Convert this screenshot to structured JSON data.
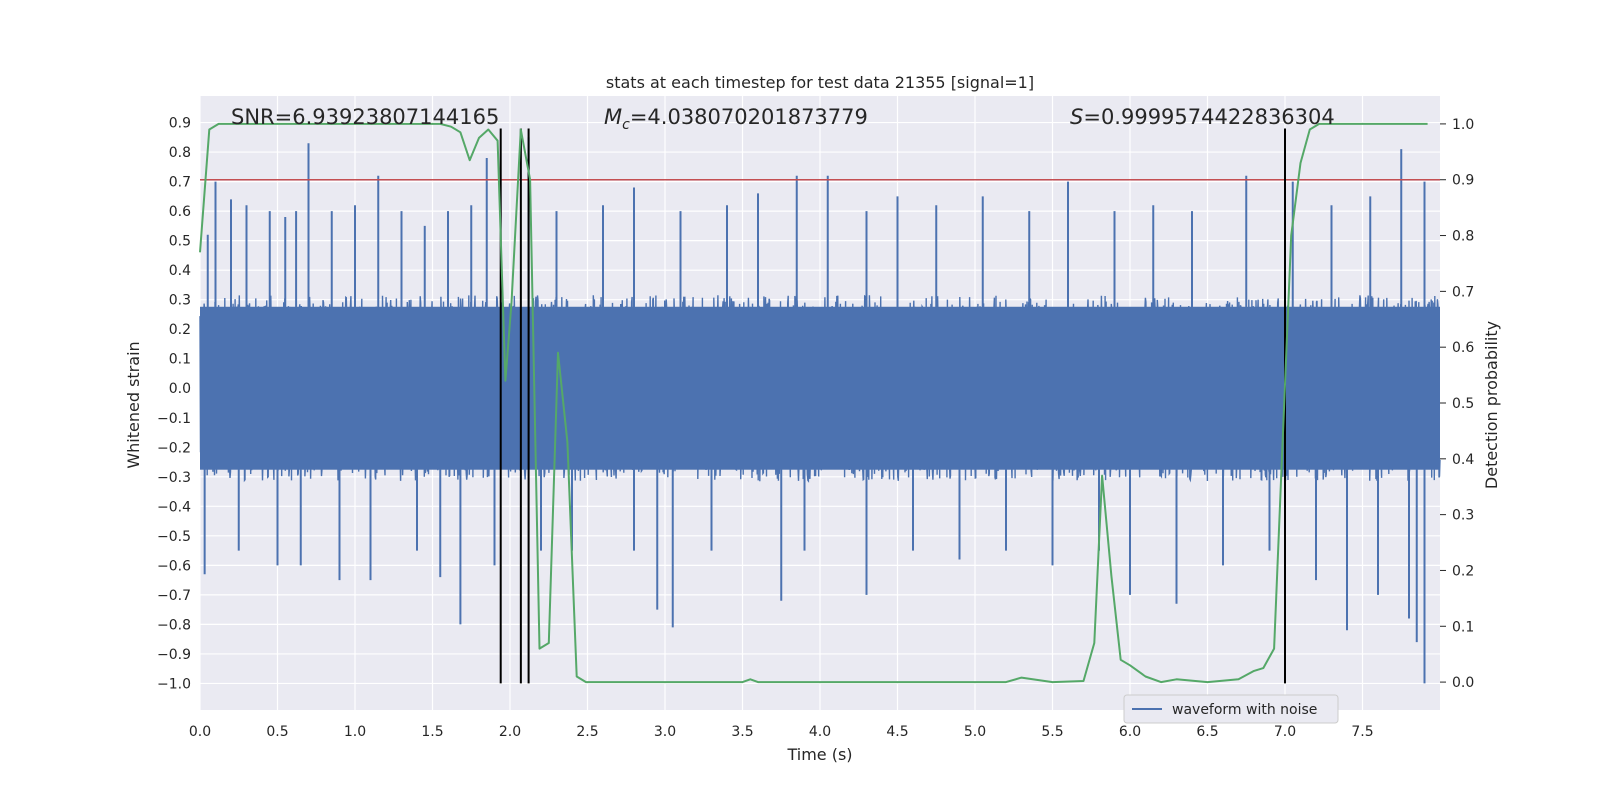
{
  "chart_data": {
    "type": "line",
    "title": "stats at each timestep for test data 21355 [signal=1]",
    "xlabel": "Time (s)",
    "ylabel": "Whitened strain",
    "y2label": "Detection probability",
    "xlim": [
      0.0,
      8.0
    ],
    "ylim": [
      -1.09,
      0.99
    ],
    "y2lim": [
      -0.05,
      1.05
    ],
    "xticks": [
      0.0,
      0.5,
      1.0,
      1.5,
      2.0,
      2.5,
      3.0,
      3.5,
      4.0,
      4.5,
      5.0,
      5.5,
      6.0,
      6.5,
      7.0,
      7.5
    ],
    "xtick_labels": [
      "0.0",
      "0.5",
      "1.0",
      "1.5",
      "2.0",
      "2.5",
      "3.0",
      "3.5",
      "4.0",
      "4.5",
      "5.0",
      "5.5",
      "6.0",
      "6.5",
      "7.0",
      "7.5"
    ],
    "yticks": [
      0.9,
      0.8,
      0.7,
      0.6,
      0.5,
      0.4,
      0.3,
      0.2,
      0.1,
      0.0,
      -0.1,
      -0.2,
      -0.3,
      -0.4,
      -0.5,
      -0.6,
      -0.7,
      -0.8,
      -0.9,
      -1.0
    ],
    "ytick_labels": [
      "0.9",
      "0.8",
      "0.7",
      "0.6",
      "0.5",
      "0.4",
      "0.3",
      "0.2",
      "0.1",
      "0.0",
      "−0.1",
      "−0.2",
      "−0.3",
      "−0.4",
      "−0.5",
      "−0.6",
      "−0.7",
      "−0.8",
      "−0.9",
      "−1.0"
    ],
    "y2ticks": [
      1.0,
      0.9,
      0.8,
      0.7,
      0.6,
      0.5,
      0.4,
      0.3,
      0.2,
      0.1,
      0.0
    ],
    "y2tick_labels": [
      "1.0",
      "0.9",
      "0.8",
      "0.7",
      "0.6",
      "0.5",
      "0.4",
      "0.3",
      "0.2",
      "0.1",
      "0.0"
    ],
    "grid": true,
    "legend": {
      "label": "waveform with noise",
      "placement": "lower-right"
    },
    "annotations": {
      "snr": "SNR=6.93923807144165",
      "mc_symbol": "M",
      "mc_sub": "c",
      "mc_value": "=4.038070201873779",
      "s_symbol": "S",
      "s_value": "=0.9999574422836304"
    },
    "threshold_line": {
      "y": 0.9,
      "axis": "right",
      "color": "#c44e52"
    },
    "vertical_lines": [
      1.94,
      2.07,
      2.12,
      7.0
    ],
    "vertical_line_range": [
      -1.0,
      0.88
    ],
    "waveform": {
      "name": "waveform with noise",
      "color": "#4c72b0",
      "t_start": 0.0,
      "t_end": 8.0,
      "typical_envelope": [
        -0.3,
        0.3
      ],
      "spikes": [
        [
          0.05,
          0.52
        ],
        [
          0.1,
          0.7
        ],
        [
          0.2,
          0.64
        ],
        [
          0.3,
          0.62
        ],
        [
          0.45,
          0.6
        ],
        [
          0.55,
          0.58
        ],
        [
          0.62,
          0.6
        ],
        [
          0.7,
          0.83
        ],
        [
          0.85,
          0.6
        ],
        [
          1.0,
          0.62
        ],
        [
          1.15,
          0.72
        ],
        [
          1.3,
          0.6
        ],
        [
          1.45,
          0.55
        ],
        [
          1.6,
          0.6
        ],
        [
          1.75,
          0.62
        ],
        [
          1.85,
          0.78
        ],
        [
          2.12,
          0.85
        ],
        [
          2.3,
          0.6
        ],
        [
          2.6,
          0.62
        ],
        [
          2.8,
          0.68
        ],
        [
          3.1,
          0.6
        ],
        [
          3.4,
          0.62
        ],
        [
          3.6,
          0.66
        ],
        [
          3.85,
          0.72
        ],
        [
          4.05,
          0.72
        ],
        [
          4.3,
          0.6
        ],
        [
          4.5,
          0.65
        ],
        [
          4.75,
          0.62
        ],
        [
          5.05,
          0.65
        ],
        [
          5.35,
          0.6
        ],
        [
          5.6,
          0.7
        ],
        [
          5.9,
          0.6
        ],
        [
          6.15,
          0.62
        ],
        [
          6.4,
          0.6
        ],
        [
          6.75,
          0.72
        ],
        [
          7.05,
          0.7
        ],
        [
          7.3,
          0.62
        ],
        [
          7.55,
          0.65
        ],
        [
          7.75,
          0.81
        ],
        [
          7.9,
          0.7
        ],
        [
          0.03,
          -0.63
        ],
        [
          0.25,
          -0.55
        ],
        [
          0.5,
          -0.6
        ],
        [
          0.65,
          -0.6
        ],
        [
          0.9,
          -0.65
        ],
        [
          1.1,
          -0.65
        ],
        [
          1.4,
          -0.55
        ],
        [
          1.55,
          -0.64
        ],
        [
          1.68,
          -0.8
        ],
        [
          1.9,
          -0.6
        ],
        [
          2.2,
          -0.55
        ],
        [
          2.4,
          -0.55
        ],
        [
          2.8,
          -0.55
        ],
        [
          2.95,
          -0.75
        ],
        [
          3.05,
          -0.81
        ],
        [
          3.3,
          -0.55
        ],
        [
          3.75,
          -0.72
        ],
        [
          3.9,
          -0.55
        ],
        [
          4.3,
          -0.7
        ],
        [
          4.6,
          -0.55
        ],
        [
          4.9,
          -0.58
        ],
        [
          5.2,
          -0.55
        ],
        [
          5.5,
          -0.6
        ],
        [
          5.8,
          -0.55
        ],
        [
          6.0,
          -0.7
        ],
        [
          6.3,
          -0.73
        ],
        [
          6.6,
          -0.6
        ],
        [
          6.9,
          -0.55
        ],
        [
          7.2,
          -0.65
        ],
        [
          7.4,
          -0.82
        ],
        [
          7.6,
          -0.7
        ],
        [
          7.8,
          -0.78
        ],
        [
          7.85,
          -0.86
        ],
        [
          7.9,
          -1.0
        ]
      ]
    },
    "probability": {
      "name": "Detection probability",
      "color": "#55a868",
      "x": [
        0.0,
        0.06,
        0.12,
        0.3,
        0.6,
        1.0,
        1.3,
        1.55,
        1.62,
        1.68,
        1.74,
        1.8,
        1.86,
        1.92,
        1.97,
        2.01,
        2.07,
        2.13,
        2.19,
        2.25,
        2.31,
        2.37,
        2.43,
        2.49,
        2.55,
        2.7,
        3.0,
        3.5,
        3.55,
        3.6,
        4.0,
        4.5,
        5.0,
        5.2,
        5.3,
        5.5,
        5.7,
        5.77,
        5.82,
        5.88,
        5.94,
        6.0,
        6.1,
        6.2,
        6.3,
        6.5,
        6.7,
        6.8,
        6.86,
        6.93,
        6.98,
        7.04,
        7.1,
        7.16,
        7.22,
        7.3,
        7.5,
        7.92
      ],
      "y": [
        0.77,
        0.99,
        1.0,
        1.0,
        1.0,
        1.0,
        1.0,
        1.0,
        0.995,
        0.985,
        0.935,
        0.975,
        0.99,
        0.97,
        0.54,
        0.68,
        0.99,
        0.9,
        0.06,
        0.07,
        0.59,
        0.43,
        0.01,
        0.0,
        0.0,
        0.0,
        0.0,
        0.0,
        0.005,
        0.0,
        0.0,
        0.0,
        0.0,
        0.0,
        0.008,
        0.0,
        0.002,
        0.07,
        0.37,
        0.19,
        0.04,
        0.03,
        0.01,
        0.0,
        0.005,
        0.0,
        0.005,
        0.02,
        0.025,
        0.06,
        0.4,
        0.8,
        0.93,
        0.99,
        1.0,
        1.0,
        1.0,
        1.0
      ]
    }
  }
}
